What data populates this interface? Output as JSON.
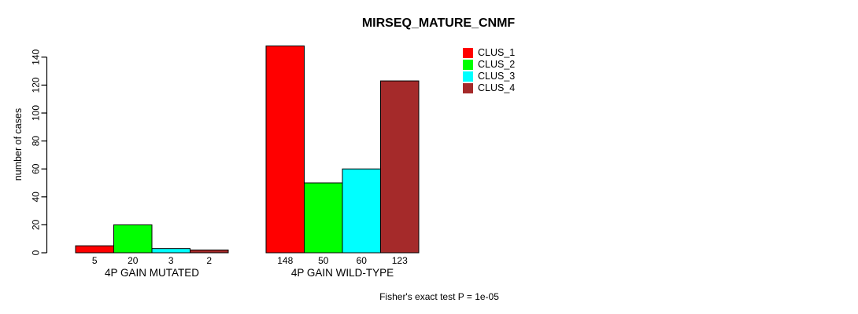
{
  "chart_data": {
    "type": "bar",
    "title": "MIRSEQ_MATURE_CNMF",
    "ylabel": "number of cases",
    "xlabel": "",
    "categories": [
      "4P GAIN MUTATED",
      "4P GAIN WILD-TYPE"
    ],
    "series": [
      {
        "name": "CLUS_1",
        "color": "#FF0000",
        "values": [
          5,
          148
        ]
      },
      {
        "name": "CLUS_2",
        "color": "#00FF00",
        "values": [
          20,
          50
        ]
      },
      {
        "name": "CLUS_3",
        "color": "#00FFFF",
        "values": [
          3,
          60
        ]
      },
      {
        "name": "CLUS_4",
        "color": "#A52A2A",
        "values": [
          2,
          123
        ]
      }
    ],
    "yticks": [
      0,
      20,
      40,
      60,
      80,
      100,
      120,
      140
    ],
    "ylim": [
      0,
      148
    ],
    "bar_value_labels": true,
    "legend_position": "top-right",
    "legend_entries": [
      "CLUS_1",
      "CLUS_2",
      "CLUS_3",
      "CLUS_4"
    ],
    "annotation": "Fisher's exact test P = 1e-05",
    "grid": false,
    "axis_color": "#000000",
    "bar_border_color": "#000000",
    "background_color": "#FFFFFF"
  }
}
